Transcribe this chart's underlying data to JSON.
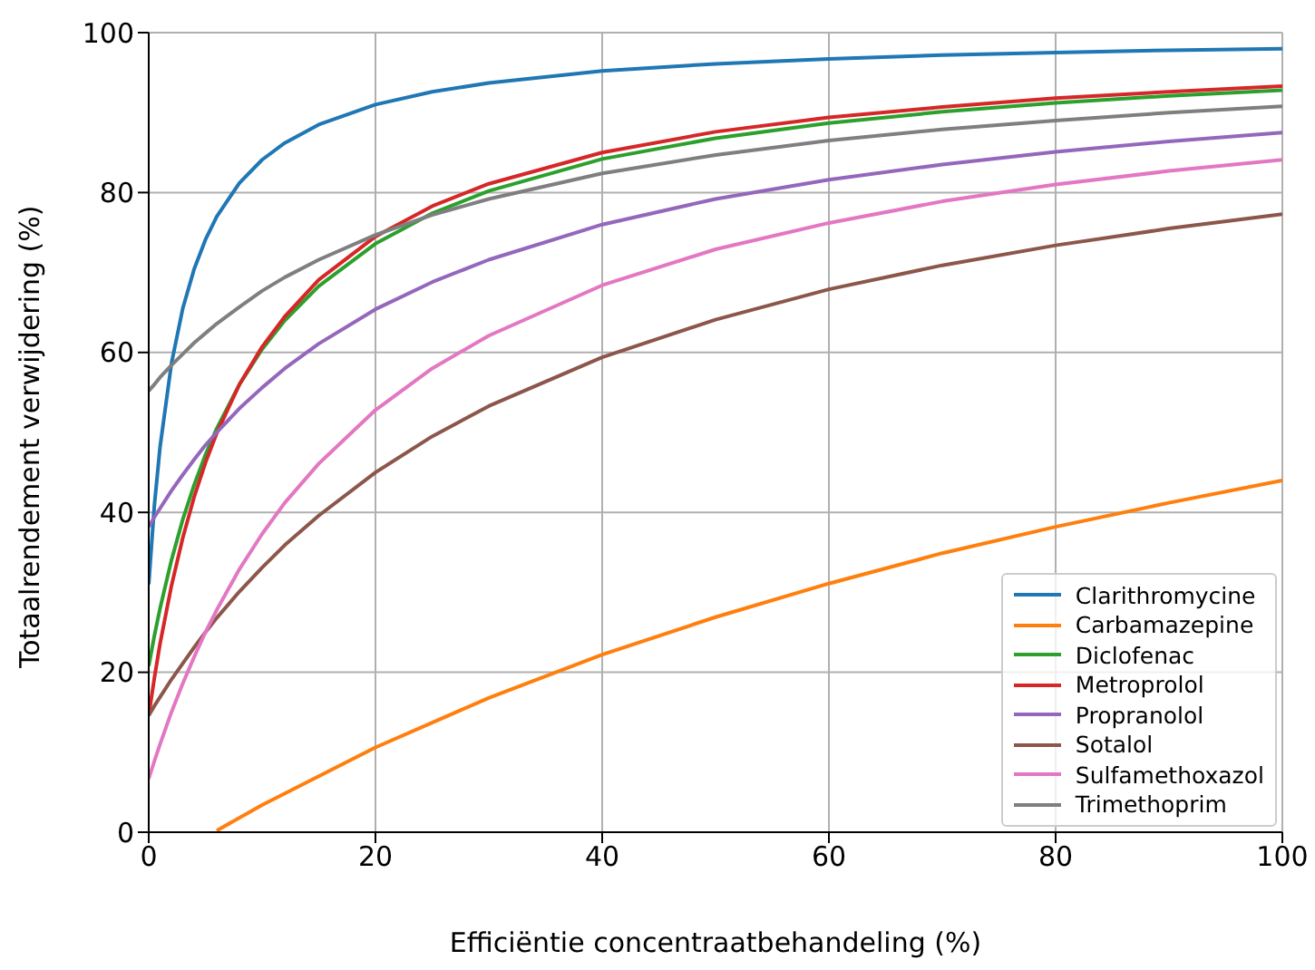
{
  "chart_data": {
    "type": "line",
    "xlabel": "Efficiëntie concentraatbehandeling (%)",
    "ylabel": "Totaalrendement verwijdering (%)",
    "x": [
      0,
      0.5,
      1,
      2,
      3,
      4,
      5,
      6,
      8,
      10,
      12,
      15,
      20,
      25,
      30,
      40,
      50,
      60,
      70,
      80,
      90,
      100
    ],
    "xlim": [
      0,
      100
    ],
    "xticks": [
      0,
      20,
      40,
      60,
      80,
      100
    ],
    "ylim": [
      0,
      100
    ],
    "yticks": [
      0,
      20,
      40,
      60,
      80,
      100
    ],
    "grid": true,
    "legend": "bottom right",
    "marker": "none",
    "line_style": "solid",
    "series": [
      {
        "name": "Clarithromycine",
        "color": "#1f77b4",
        "values": [
          31.0,
          40.9,
          48.2,
          58.6,
          65.5,
          70.4,
          74.1,
          77.0,
          81.2,
          84.1,
          86.2,
          88.5,
          91.0,
          92.6,
          93.7,
          95.2,
          96.1,
          96.7,
          97.2,
          97.5,
          97.8,
          98.0
        ]
      },
      {
        "name": "Carbamazepine",
        "color": "#ff7f0e",
        "x": [
          6,
          10,
          20,
          30,
          40,
          50,
          60,
          70,
          80,
          90,
          100
        ],
        "values": [
          0.2,
          3.4,
          10.6,
          16.8,
          22.2,
          26.9,
          31.1,
          34.9,
          38.2,
          41.2,
          44.0
        ]
      },
      {
        "name": "Diclofenac",
        "color": "#2ca02c",
        "values": [
          20.8,
          24.6,
          28.0,
          34.0,
          39.1,
          43.4,
          47.2,
          50.5,
          56.0,
          60.4,
          64.0,
          68.3,
          73.6,
          77.4,
          80.2,
          84.2,
          86.8,
          88.7,
          90.1,
          91.2,
          92.1,
          92.8
        ]
      },
      {
        "name": "Metroprolol",
        "color": "#d62728",
        "values": [
          14.6,
          19.3,
          23.6,
          30.8,
          36.8,
          41.9,
          46.2,
          49.9,
          56.0,
          60.7,
          64.5,
          69.1,
          74.5,
          78.3,
          81.1,
          85.0,
          87.6,
          89.4,
          90.7,
          91.8,
          92.6,
          93.3
        ]
      },
      {
        "name": "Propranolol",
        "color": "#9467bd",
        "values": [
          38.2,
          39.4,
          40.5,
          42.7,
          44.7,
          46.6,
          48.4,
          50.0,
          53.0,
          55.6,
          58.0,
          61.1,
          65.4,
          68.8,
          71.6,
          76.0,
          79.2,
          81.6,
          83.5,
          85.1,
          86.4,
          87.5
        ]
      },
      {
        "name": "Sotalol",
        "color": "#8c564b",
        "values": [
          14.6,
          15.8,
          16.9,
          19.1,
          21.1,
          23.1,
          25.0,
          26.8,
          30.1,
          33.1,
          35.9,
          39.6,
          45.0,
          49.5,
          53.3,
          59.4,
          64.1,
          67.9,
          70.9,
          73.4,
          75.5,
          77.3
        ]
      },
      {
        "name": "Sulfamethoxazol",
        "color": "#e377c2",
        "values": [
          6.7,
          8.9,
          11.0,
          15.0,
          18.6,
          21.9,
          25.0,
          27.8,
          32.9,
          37.3,
          41.2,
          46.1,
          52.8,
          58.0,
          62.1,
          68.4,
          72.9,
          76.2,
          78.9,
          81.0,
          82.7,
          84.1
        ]
      },
      {
        "name": "Trimethoprim",
        "color": "#7f7f7f",
        "values": [
          55.2,
          56.0,
          56.9,
          58.4,
          59.8,
          61.2,
          62.4,
          63.6,
          65.7,
          67.7,
          69.4,
          71.6,
          74.7,
          77.2,
          79.2,
          82.4,
          84.7,
          86.5,
          87.9,
          89.0,
          90.0,
          90.8
        ]
      }
    ]
  }
}
